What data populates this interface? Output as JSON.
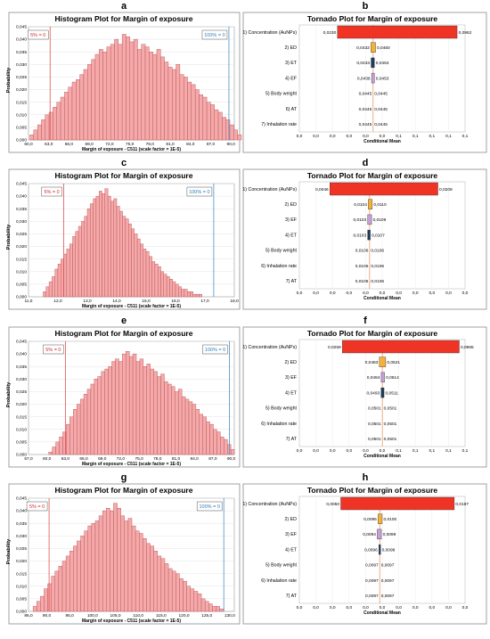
{
  "panels": [
    {
      "hist": {
        "letter": "a",
        "title": "Histogram Plot for Margin of exposure",
        "xlabel": "Margin of exposure - C511 (scale factor = 1E-5)",
        "ylabel": "Probability",
        "yticks": [
          "0,000",
          "0,005",
          "0,010",
          "0,015",
          "0,020",
          "0,025",
          "0,030",
          "0,035",
          "0,040",
          "0,045"
        ],
        "xticks": [
          "60,0",
          "63,0",
          "66,0",
          "69,0",
          "72,0",
          "75,0",
          "78,0",
          "81,0",
          "84,0",
          "87,0",
          "90,0"
        ],
        "xlim": [
          60,
          90.5
        ],
        "ylim": [
          0,
          0.045
        ],
        "marker5": {
          "label": "5% = 0",
          "x": 63.2
        },
        "marker100": {
          "label": "100% = 0",
          "x": 89.7
        },
        "bins": {
          "start": 60.2,
          "width": 0.57
        },
        "values": [
          0.002,
          0.004,
          0.006,
          0.008,
          0.01,
          0.011,
          0.013,
          0.015,
          0.017,
          0.019,
          0.021,
          0.023,
          0.024,
          0.026,
          0.028,
          0.03,
          0.032,
          0.034,
          0.036,
          0.035,
          0.037,
          0.038,
          0.04,
          0.038,
          0.042,
          0.041,
          0.039,
          0.04,
          0.036,
          0.038,
          0.037,
          0.035,
          0.034,
          0.036,
          0.033,
          0.031,
          0.029,
          0.028,
          0.03,
          0.026,
          0.025,
          0.023,
          0.022,
          0.02,
          0.018,
          0.017,
          0.015,
          0.014,
          0.012,
          0.011,
          0.009,
          0.008,
          0.006,
          0.004,
          0.002
        ]
      },
      "tornado": {
        "letter": "b",
        "title": "Tornado Plot for Margin of exposure",
        "xlabel": "Conditional Mean",
        "xticks": [
          "0,0",
          "0,0",
          "0,0",
          "0,0",
          "0,0",
          "0,0",
          "0,1",
          "0,1",
          "0,1",
          "0,1",
          "0,1"
        ],
        "xlim": [
          0,
          0.1
        ],
        "mean": 0.0445,
        "factors": [
          {
            "label": "1) Concentration (AuNPs)",
            "low": 0.023,
            "high": 0.0952,
            "low_text": "0,0230",
            "high_text": "0,0952",
            "color": "#ef3426"
          },
          {
            "label": "2) ED",
            "low": 0.0432,
            "high": 0.046,
            "low_text": "0,0432",
            "high_text": "0,0460",
            "color": "#f6b13b"
          },
          {
            "label": "3) ET",
            "low": 0.0433,
            "high": 0.0453,
            "low_text": "0,0433",
            "high_text": "0,0453",
            "color": "#1f3c5c"
          },
          {
            "label": "4) EF",
            "low": 0.0436,
            "high": 0.0453,
            "low_text": "0,0436",
            "high_text": "0,0453",
            "color": "#c79fd7"
          },
          {
            "label": "5) Body weight",
            "low": 0.0445,
            "high": 0.0445,
            "low_text": "0,0445",
            "high_text": "0,0445",
            "color": "#888888"
          },
          {
            "label": "6) AT",
            "low": 0.0445,
            "high": 0.0445,
            "low_text": "0,0445",
            "high_text": "0,0445",
            "color": "#888888"
          },
          {
            "label": "7) Inhalation rate",
            "low": 0.0445,
            "high": 0.0445,
            "low_text": "0,0445",
            "high_text": "0,0445",
            "color": "#888888"
          }
        ]
      }
    },
    {
      "hist": {
        "letter": "c",
        "title": "Histogram Plot for Margin of exposure",
        "xlabel": "Margin of exposure - C511 (scale factor = 1E-5)",
        "ylabel": "Probability",
        "yticks": [
          "0,000",
          "0,005",
          "0,010",
          "0,015",
          "0,020",
          "0,025",
          "0,030",
          "0,035",
          "0,040",
          "0,045"
        ],
        "xticks": [
          "11,0",
          "12,0",
          "13,0",
          "14,0",
          "15,0",
          "16,0",
          "17,0",
          "18,0"
        ],
        "xlim": [
          11,
          18
        ],
        "ylim": [
          0,
          0.045
        ],
        "marker5": {
          "label": "5% = 0",
          "x": 12.2
        },
        "marker100": {
          "label": "100% = 0",
          "x": 17.3
        },
        "bins": {
          "start": 11.5,
          "width": 0.1
        },
        "values": [
          0.002,
          0.004,
          0.006,
          0.008,
          0.011,
          0.013,
          0.015,
          0.017,
          0.019,
          0.021,
          0.024,
          0.026,
          0.028,
          0.03,
          0.032,
          0.035,
          0.037,
          0.039,
          0.04,
          0.042,
          0.041,
          0.043,
          0.04,
          0.038,
          0.039,
          0.036,
          0.034,
          0.032,
          0.031,
          0.029,
          0.027,
          0.025,
          0.023,
          0.021,
          0.019,
          0.018,
          0.016,
          0.014,
          0.013,
          0.012,
          0.01,
          0.009,
          0.008,
          0.007,
          0.006,
          0.005,
          0.004,
          0.003,
          0.003,
          0.002,
          0.002,
          0.001,
          0.001,
          0.001
        ]
      },
      "tornado": {
        "letter": "d",
        "title": "Tornado Plot for Margin of exposure",
        "xlabel": "Conditional Mean",
        "xticks": [
          "0,0",
          "0,0",
          "0,0",
          "0,0",
          "0,0",
          "0,0",
          "0,0",
          "0,0",
          "0,0",
          "0,0",
          "0,0"
        ],
        "xlim": [
          0,
          0.025
        ],
        "mean": 0.0106,
        "factors": [
          {
            "label": "1) Concentration (AuNPs)",
            "low": 0.0046,
            "high": 0.0209,
            "low_text": "0,0046",
            "high_text": "0,0209",
            "color": "#ef3426"
          },
          {
            "label": "2) ED",
            "low": 0.0104,
            "high": 0.011,
            "low_text": "0,0104",
            "high_text": "0,0110",
            "color": "#f6b13b"
          },
          {
            "label": "3) EF",
            "low": 0.0103,
            "high": 0.0109,
            "low_text": "0,0103",
            "high_text": "0,0109",
            "color": "#c79fd7"
          },
          {
            "label": "4) ET",
            "low": 0.0103,
            "high": 0.0107,
            "low_text": "0,0103",
            "high_text": "0,0107",
            "color": "#1f3c5c"
          },
          {
            "label": "5) Body weight",
            "low": 0.0106,
            "high": 0.0106,
            "low_text": "0,0106",
            "high_text": "0,0106",
            "color": "#888888"
          },
          {
            "label": "6) Inhalation rate",
            "low": 0.0106,
            "high": 0.0106,
            "low_text": "0,0106",
            "high_text": "0,0106",
            "color": "#888888"
          },
          {
            "label": "7) AT",
            "low": 0.0106,
            "high": 0.0106,
            "low_text": "0,0106",
            "high_text": "0,0106",
            "color": "#888888"
          }
        ]
      }
    },
    {
      "hist": {
        "letter": "e",
        "title": "Histogram Plot for Margin of exposure",
        "xlabel": "Margin of exposure - C511 (scale factor = 1E-5)",
        "ylabel": "Probability",
        "yticks": [
          "0,000",
          "0,005",
          "0,010",
          "0,015",
          "0,020",
          "0,025",
          "0,030",
          "0,035",
          "0,040",
          "0,045"
        ],
        "xticks": [
          "57,0",
          "60,0",
          "63,0",
          "66,0",
          "69,0",
          "72,0",
          "75,0",
          "78,0",
          "81,0",
          "84,0",
          "87,0",
          "90,0"
        ],
        "xlim": [
          57,
          90.5
        ],
        "ylim": [
          0,
          0.045
        ],
        "marker5": {
          "label": "5% = 0",
          "x": 63.0
        },
        "marker100": {
          "label": "100% = 0",
          "x": 89.7
        },
        "bins": {
          "start": 60.3,
          "width": 0.57
        },
        "values": [
          0.001,
          0.003,
          0.005,
          0.007,
          0.009,
          0.012,
          0.015,
          0.018,
          0.02,
          0.022,
          0.024,
          0.026,
          0.028,
          0.03,
          0.031,
          0.033,
          0.034,
          0.035,
          0.037,
          0.038,
          0.037,
          0.04,
          0.041,
          0.039,
          0.04,
          0.037,
          0.038,
          0.035,
          0.036,
          0.034,
          0.033,
          0.031,
          0.032,
          0.029,
          0.028,
          0.027,
          0.025,
          0.026,
          0.023,
          0.022,
          0.021,
          0.02,
          0.018,
          0.016,
          0.015,
          0.013,
          0.012,
          0.01,
          0.009,
          0.007,
          0.006,
          0.004,
          0.002
        ]
      },
      "tornado": {
        "letter": "f",
        "title": "Tornado Plot for Margin of exposure",
        "xlabel": "Conditional Mean",
        "xticks": [
          "0,0",
          "0,0",
          "0,0",
          "0,0",
          "0,0",
          "0,0",
          "0,1",
          "0,1",
          "0,1",
          "0,1",
          "0,1"
        ],
        "xlim": [
          0,
          0.1
        ],
        "mean": 0.0501,
        "factors": [
          {
            "label": "1) Concentration (AuNPs)",
            "low": 0.0259,
            "high": 0.0965,
            "low_text": "0,0259",
            "high_text": "0,0965",
            "color": "#ef3426"
          },
          {
            "label": "2) ED",
            "low": 0.0483,
            "high": 0.0521,
            "low_text": "0,0483",
            "high_text": "0,0521",
            "color": "#f6b13b"
          },
          {
            "label": "3) EF",
            "low": 0.0494,
            "high": 0.0514,
            "low_text": "0,0494",
            "high_text": "0,0514",
            "color": "#c79fd7"
          },
          {
            "label": "4) ET",
            "low": 0.0493,
            "high": 0.0511,
            "low_text": "0,0493",
            "high_text": "0,0511",
            "color": "#1f3c5c"
          },
          {
            "label": "5) Body weight",
            "low": 0.0501,
            "high": 0.0501,
            "low_text": "0,0501",
            "high_text": "0,0501",
            "color": "#888888"
          },
          {
            "label": "6) Inhalation rate",
            "low": 0.0501,
            "high": 0.0501,
            "low_text": "0,0501",
            "high_text": "0,0501",
            "color": "#888888"
          },
          {
            "label": "7) AT",
            "low": 0.0501,
            "high": 0.0501,
            "low_text": "0,0501",
            "high_text": "0,0501",
            "color": "#888888"
          }
        ]
      }
    },
    {
      "hist": {
        "letter": "g",
        "title": "Histogram Plot for Margin of exposure",
        "xlabel": "Margin of exposure - C511 (scale factor = 1E-5)",
        "ylabel": "Probability",
        "yticks": [
          "0,000",
          "0,005",
          "0,010",
          "0,015",
          "0,020",
          "0,025",
          "0,030",
          "0,035",
          "0,040",
          "0,045"
        ],
        "xticks": [
          "86,0",
          "90,0",
          "95,0",
          "100,0",
          "105,0",
          "110,0",
          "115,0",
          "120,0",
          "125,0",
          "130,0"
        ],
        "xlim": [
          86,
          131
        ],
        "ylim": [
          0,
          0.045
        ],
        "marker5": {
          "label": "5% = 0",
          "x": 90.5
        },
        "marker100": {
          "label": "100% = 0",
          "x": 128.7
        },
        "bins": {
          "start": 87.0,
          "width": 0.8
        },
        "values": [
          0.002,
          0.004,
          0.006,
          0.009,
          0.011,
          0.014,
          0.016,
          0.018,
          0.02,
          0.022,
          0.024,
          0.026,
          0.028,
          0.03,
          0.032,
          0.034,
          0.035,
          0.036,
          0.038,
          0.04,
          0.041,
          0.04,
          0.043,
          0.041,
          0.038,
          0.036,
          0.037,
          0.034,
          0.032,
          0.031,
          0.029,
          0.027,
          0.026,
          0.024,
          0.022,
          0.021,
          0.019,
          0.017,
          0.016,
          0.015,
          0.013,
          0.012,
          0.01,
          0.009,
          0.008,
          0.007,
          0.005,
          0.004,
          0.003,
          0.002,
          0.002,
          0.001
        ]
      },
      "tornado": {
        "letter": "h",
        "title": "Tornado Plot for Margin of exposure",
        "xlabel": "Conditional Mean",
        "xticks": [
          "0,0",
          "0,0",
          "0,0",
          "0,0",
          "0,0",
          "0,0",
          "0,0",
          "0,0",
          "0,0",
          "0,0",
          "0,0"
        ],
        "xlim": [
          0,
          0.02
        ],
        "mean": 0.0097,
        "factors": [
          {
            "label": "1) Concentration (AuNPs)",
            "low": 0.005,
            "high": 0.0187,
            "low_text": "0,0050",
            "high_text": "0,0187",
            "color": "#ef3426"
          },
          {
            "label": "2) ED",
            "low": 0.0095,
            "high": 0.01,
            "low_text": "0,0095",
            "high_text": "0,0100",
            "color": "#f6b13b"
          },
          {
            "label": "3) EF",
            "low": 0.0094,
            "high": 0.0099,
            "low_text": "0,0094",
            "high_text": "0,0099",
            "color": "#c79fd7"
          },
          {
            "label": "4) ET",
            "low": 0.0096,
            "high": 0.0098,
            "low_text": "0,0096",
            "high_text": "0,0098",
            "color": "#1f3c5c"
          },
          {
            "label": "5) Body weight",
            "low": 0.0097,
            "high": 0.0097,
            "low_text": "0,0097",
            "high_text": "0,0097",
            "color": "#888888"
          },
          {
            "label": "6) Inhalation rate",
            "low": 0.0097,
            "high": 0.0097,
            "low_text": "0,0097",
            "high_text": "0,0097",
            "color": "#888888"
          },
          {
            "label": "7) AT",
            "low": 0.0097,
            "high": 0.0097,
            "low_text": "0,0097",
            "high_text": "0,0097",
            "color": "#888888"
          }
        ]
      }
    }
  ],
  "chart_data": [
    {
      "type": "bar",
      "panel": "a",
      "title": "Histogram Plot for Margin of exposure",
      "xlabel": "Margin of exposure - C511 (scale factor = 1E-5)",
      "ylabel": "Probability",
      "xlim": [
        60,
        90.5
      ],
      "ylim": [
        0,
        0.045
      ]
    },
    {
      "type": "bar",
      "panel": "b",
      "title": "Tornado Plot for Margin of exposure",
      "xlabel": "Conditional Mean"
    },
    {
      "type": "bar",
      "panel": "c",
      "title": "Histogram Plot for Margin of exposure",
      "xlabel": "Margin of exposure - C511 (scale factor = 1E-5)",
      "ylabel": "Probability",
      "xlim": [
        11,
        18
      ],
      "ylim": [
        0,
        0.045
      ]
    },
    {
      "type": "bar",
      "panel": "d",
      "title": "Tornado Plot for Margin of exposure",
      "xlabel": "Conditional Mean"
    },
    {
      "type": "bar",
      "panel": "e",
      "title": "Histogram Plot for Margin of exposure",
      "xlabel": "Margin of exposure - C511 (scale factor = 1E-5)",
      "ylabel": "Probability",
      "xlim": [
        57,
        90.5
      ],
      "ylim": [
        0,
        0.045
      ]
    },
    {
      "type": "bar",
      "panel": "f",
      "title": "Tornado Plot for Margin of exposure",
      "xlabel": "Conditional Mean"
    },
    {
      "type": "bar",
      "panel": "g",
      "title": "Histogram Plot for Margin of exposure",
      "xlabel": "Margin of exposure - C511 (scale factor = 1E-5)",
      "ylabel": "Probability",
      "xlim": [
        86,
        131
      ],
      "ylim": [
        0,
        0.045
      ]
    },
    {
      "type": "bar",
      "panel": "h",
      "title": "Tornado Plot for Margin of exposure",
      "xlabel": "Conditional Mean"
    }
  ]
}
